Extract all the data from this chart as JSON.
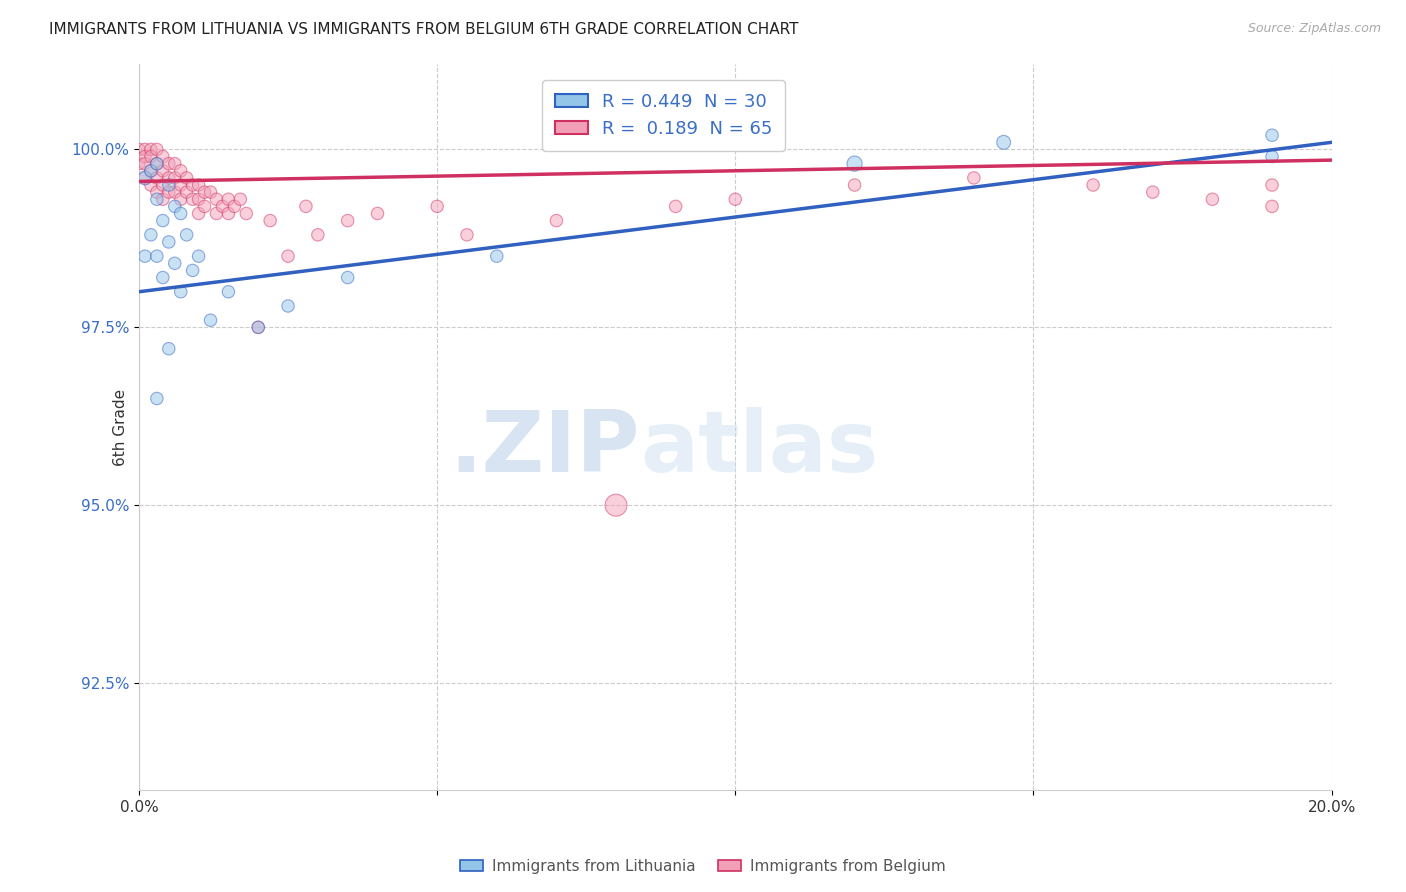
{
  "title": "IMMIGRANTS FROM LITHUANIA VS IMMIGRANTS FROM BELGIUM 6TH GRADE CORRELATION CHART",
  "source": "Source: ZipAtlas.com",
  "ylabel": "6th Grade",
  "y_ticks": [
    92.5,
    95.0,
    97.5,
    100.0
  ],
  "y_tick_labels": [
    "92.5%",
    "95.0%",
    "97.5%",
    "100.0%"
  ],
  "xlim": [
    0.0,
    0.2
  ],
  "ylim": [
    91.0,
    101.2
  ],
  "legend_r1": "R = 0.449  N = 30",
  "legend_r2": "R =  0.189  N = 65",
  "color_lithuania": "#92C5E8",
  "color_belgium": "#F2A0B8",
  "line_color_lithuania": "#3060C0",
  "line_color_belgium": "#D03060",
  "background_color": "#ffffff",
  "watermark_zip": ".ZIP",
  "watermark_atlas": "atlas",
  "lithuania_x": [
    0.001,
    0.001,
    0.002,
    0.002,
    0.003,
    0.003,
    0.003,
    0.004,
    0.004,
    0.005,
    0.005,
    0.006,
    0.006,
    0.007,
    0.007,
    0.008,
    0.009,
    0.01,
    0.012,
    0.015,
    0.02,
    0.025,
    0.035,
    0.06,
    0.12,
    0.145,
    0.19,
    0.19,
    0.005,
    0.003
  ],
  "lithuania_y": [
    99.6,
    98.5,
    99.7,
    98.8,
    99.8,
    99.3,
    98.5,
    99.0,
    98.2,
    99.5,
    98.7,
    99.2,
    98.4,
    99.1,
    98.0,
    98.8,
    98.3,
    98.5,
    97.6,
    98.0,
    97.5,
    97.8,
    98.2,
    98.5,
    99.8,
    100.1,
    100.2,
    99.9,
    97.2,
    96.5
  ],
  "lithuania_sizes": [
    100,
    80,
    80,
    80,
    80,
    80,
    80,
    80,
    80,
    80,
    80,
    80,
    80,
    80,
    80,
    80,
    80,
    80,
    80,
    80,
    80,
    80,
    80,
    80,
    120,
    100,
    80,
    80,
    80,
    80
  ],
  "belgium_x": [
    0.0,
    0.0,
    0.001,
    0.001,
    0.001,
    0.001,
    0.002,
    0.002,
    0.002,
    0.002,
    0.003,
    0.003,
    0.003,
    0.003,
    0.004,
    0.004,
    0.004,
    0.004,
    0.005,
    0.005,
    0.005,
    0.006,
    0.006,
    0.006,
    0.007,
    0.007,
    0.007,
    0.008,
    0.008,
    0.009,
    0.009,
    0.01,
    0.01,
    0.01,
    0.011,
    0.011,
    0.012,
    0.013,
    0.013,
    0.014,
    0.015,
    0.015,
    0.016,
    0.017,
    0.018,
    0.02,
    0.022,
    0.025,
    0.028,
    0.03,
    0.035,
    0.04,
    0.05,
    0.055,
    0.07,
    0.09,
    0.1,
    0.12,
    0.14,
    0.16,
    0.17,
    0.18,
    0.19,
    0.19,
    0.08
  ],
  "belgium_y": [
    100.0,
    99.8,
    100.0,
    99.9,
    99.8,
    99.6,
    100.0,
    99.9,
    99.7,
    99.5,
    100.0,
    99.8,
    99.6,
    99.4,
    99.9,
    99.7,
    99.5,
    99.3,
    99.8,
    99.6,
    99.4,
    99.8,
    99.6,
    99.4,
    99.7,
    99.5,
    99.3,
    99.6,
    99.4,
    99.5,
    99.3,
    99.5,
    99.3,
    99.1,
    99.4,
    99.2,
    99.4,
    99.3,
    99.1,
    99.2,
    99.3,
    99.1,
    99.2,
    99.3,
    99.1,
    97.5,
    99.0,
    98.5,
    99.2,
    98.8,
    99.0,
    99.1,
    99.2,
    98.8,
    99.0,
    99.2,
    99.3,
    99.5,
    99.6,
    99.5,
    99.4,
    99.3,
    99.5,
    99.2,
    95.0
  ],
  "belgium_sizes": [
    80,
    80,
    80,
    80,
    80,
    80,
    80,
    80,
    80,
    80,
    80,
    80,
    80,
    80,
    80,
    80,
    80,
    80,
    80,
    80,
    80,
    80,
    80,
    80,
    80,
    80,
    80,
    80,
    80,
    80,
    80,
    80,
    80,
    80,
    80,
    80,
    80,
    80,
    80,
    80,
    80,
    80,
    80,
    80,
    80,
    80,
    80,
    80,
    80,
    80,
    80,
    80,
    80,
    80,
    80,
    80,
    80,
    80,
    80,
    80,
    80,
    80,
    80,
    80,
    250
  ],
  "lith_line_x0": 0.0,
  "lith_line_y0": 98.0,
  "lith_line_x1": 0.19,
  "lith_line_y1": 100.1,
  "belg_line_x0": 0.0,
  "belg_line_y0": 99.55,
  "belg_line_x1": 0.19,
  "belg_line_y1": 99.85
}
